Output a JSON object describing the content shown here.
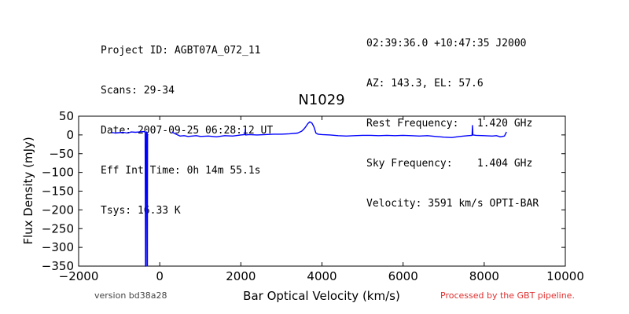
{
  "header": {
    "left": [
      "Project ID: AGBT07A_072_11",
      "Scans: 29-34",
      "Date: 2007-09-25 06:28:12 UT",
      "Eff Int Time: 0h 14m 55.1s",
      "Tsys: 16.33 K"
    ],
    "right": [
      "02:39:36.0 +10:47:35 J2000",
      "AZ: 143.3, EL: 57.6",
      "Rest Frequency:   1.420 GHz",
      "Sky Frequency:    1.404 GHz",
      "Velocity: 3591 km/s OPTI-BAR"
    ]
  },
  "footer": {
    "version": "version bd38a28",
    "pipeline": "Processed by the GBT pipeline.",
    "pipeline_color": "#e03030"
  },
  "chart_data": {
    "type": "line",
    "title": "N1029",
    "xlabel": "Bar Optical Velocity (km/s)",
    "ylabel": "Flux Density (mJy)",
    "xlim": [
      -2000,
      10000
    ],
    "ylim": [
      -350,
      50
    ],
    "xticks": [
      -2000,
      0,
      2000,
      4000,
      6000,
      8000,
      10000
    ],
    "yticks": [
      50,
      0,
      -50,
      -100,
      -150,
      -200,
      -250,
      -300,
      -350
    ],
    "grid": false,
    "line_color": "#0000ff",
    "series": [
      {
        "segments": [
          {
            "x": [
              -1200,
              -1100,
              -1000,
              -900,
              -800,
              -700,
              -600,
              -500,
              -400,
              -360,
              -350,
              -340,
              -330,
              -320,
              -310,
              -305
            ],
            "y": [
              7,
              5,
              6,
              7,
              5,
              8,
              7,
              8,
              9,
              8,
              -350,
              -350,
              2,
              8,
              2,
              -350
            ]
          },
          {
            "x": [
              -305,
              -300,
              -295,
              -290
            ],
            "y": [
              -350,
              0,
              0,
              2
            ]
          },
          {
            "x": [
              300,
              350,
              400,
              500,
              600,
              700,
              800,
              900,
              1000,
              1200,
              1400,
              1600,
              1800,
              2000,
              2100,
              2110,
              2120,
              2200,
              2400,
              2600,
              2800,
              3000,
              3200,
              3400,
              3500,
              3550,
              3600,
              3650,
              3700,
              3750,
              3800,
              3850,
              3900,
              4000,
              4200,
              4400,
              4600,
              4800,
              5000,
              5200,
              5400,
              5600,
              5800,
              6000,
              6200,
              6400,
              6600,
              6800,
              7000,
              7200,
              7400,
              7600,
              7700,
              7710,
              7720,
              7800,
              8000,
              8200,
              8300,
              8400,
              8500,
              8550
            ],
            "y": [
              8,
              5,
              2,
              -3,
              -2,
              -4,
              -3,
              -2,
              -4,
              -3,
              -5,
              -2,
              -3,
              0,
              1,
              15,
              0,
              1,
              0,
              1,
              2,
              2,
              3,
              5,
              10,
              15,
              22,
              30,
              35,
              32,
              22,
              5,
              2,
              1,
              0,
              -2,
              -3,
              -2,
              -1,
              -1,
              -2,
              -1,
              -2,
              -1,
              -2,
              -3,
              -2,
              -4,
              -6,
              -7,
              -4,
              -2,
              -1,
              25,
              0,
              -1,
              -2,
              -3,
              -2,
              -5,
              -3,
              8
            ]
          }
        ]
      }
    ]
  }
}
